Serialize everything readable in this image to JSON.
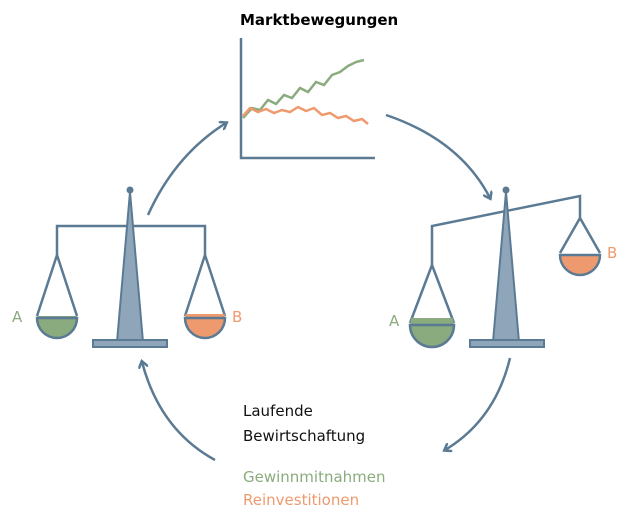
{
  "title": "Marktbewegungen",
  "left_scale": {
    "left_label": "A",
    "right_label": "B"
  },
  "right_scale": {
    "left_label": "A",
    "right_label": "B"
  },
  "cycle_label": {
    "lines": [
      "Laufende",
      "Bewirtschaftung"
    ]
  },
  "legend": {
    "items": [
      "Gewinnmitnahmen",
      "Reinvestitionen"
    ]
  }
}
